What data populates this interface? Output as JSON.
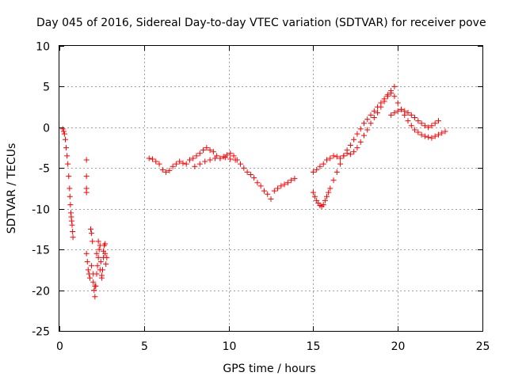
{
  "chart_data": {
    "type": "scatter",
    "title": "Day 045 of 2016, Sidereal Day-to-day VTEC variation (SDTVAR) for receiver pove",
    "xlabel": "GPS time / hours",
    "ylabel": "SDTVAR / TECUs",
    "xlim": [
      0,
      25
    ],
    "ylim": [
      -25,
      10
    ],
    "xticks": [
      "0",
      "5",
      "10",
      "15",
      "20",
      "25"
    ],
    "yticks": [
      "10",
      "5",
      "0",
      "-5",
      "-10",
      "-15",
      "-20",
      "-25"
    ],
    "grid": true,
    "marker": "plus",
    "color": "#ff0000",
    "series": [
      {
        "name": "early_drop",
        "x": [
          0.2,
          0.25,
          0.3,
          0.35,
          0.4,
          0.45,
          0.5,
          0.55,
          0.6,
          0.62,
          0.65,
          0.68,
          0.7,
          0.72,
          0.75,
          0.78,
          0.8
        ],
        "y": [
          -0.2,
          -0.5,
          -0.8,
          -1.5,
          -2.5,
          -3.5,
          -4.5,
          -6.0,
          -7.5,
          -8.5,
          -9.5,
          -10.5,
          -11.0,
          -11.5,
          -12.0,
          -12.8,
          -13.5
        ]
      },
      {
        "name": "isolated_points",
        "x": [
          1.6,
          1.6,
          1.6,
          1.6
        ],
        "y": [
          -4.0,
          -6.0,
          -7.5,
          -8.0
        ]
      },
      {
        "name": "early_cluster",
        "x": [
          1.6,
          1.65,
          1.7,
          1.75,
          1.8,
          1.85,
          1.9,
          1.95,
          2.0,
          2.05,
          2.1,
          2.15,
          2.2,
          2.25,
          2.3,
          2.35,
          2.4,
          2.45,
          2.5,
          2.55,
          2.6,
          2.65,
          2.7,
          2.75,
          2.8,
          1.9,
          2.0,
          2.1,
          2.2,
          2.3,
          2.4,
          2.5,
          2.6,
          2.7
        ],
        "y": [
          -15.5,
          -16.5,
          -17.5,
          -18.0,
          -18.5,
          -12.5,
          -13.0,
          -14.0,
          -19.0,
          -20.0,
          -20.8,
          -19.5,
          -18.0,
          -17.0,
          -16.0,
          -15.0,
          -14.5,
          -16.5,
          -18.5,
          -17.5,
          -16.0,
          -14.5,
          -15.5,
          -16.8,
          -16.0,
          -17.0,
          -18.0,
          -19.5,
          -15.5,
          -14.0,
          -17.5,
          -18.2,
          -15.2,
          -14.3
        ]
      },
      {
        "name": "day_trace",
        "x": [
          5.3,
          5.5,
          5.7,
          5.9,
          6.1,
          6.3,
          6.5,
          6.7,
          6.9,
          7.1,
          7.3,
          7.5,
          7.7,
          7.9,
          8.1,
          8.3,
          8.5,
          8.7,
          8.9,
          9.1,
          9.3,
          9.5,
          9.7,
          9.9,
          10.1,
          10.3,
          10.5,
          10.7,
          10.9,
          11.1,
          11.3,
          11.5,
          11.7,
          11.9,
          12.1,
          12.3,
          12.5,
          12.7,
          12.9,
          13.1,
          13.3,
          13.5,
          13.7,
          13.9,
          8.0,
          8.3,
          8.6,
          8.9,
          9.2,
          9.5,
          9.8,
          10.1,
          10.4
        ],
        "y": [
          -3.8,
          -3.9,
          -4.2,
          -4.5,
          -5.2,
          -5.5,
          -5.3,
          -4.8,
          -4.5,
          -4.2,
          -4.4,
          -4.5,
          -4.0,
          -3.8,
          -3.5,
          -3.2,
          -2.8,
          -2.5,
          -2.8,
          -3.0,
          -3.5,
          -3.8,
          -3.6,
          -3.4,
          -3.2,
          -3.5,
          -4.0,
          -4.5,
          -5.0,
          -5.5,
          -5.8,
          -6.2,
          -6.8,
          -7.2,
          -7.8,
          -8.2,
          -8.8,
          -7.8,
          -7.5,
          -7.2,
          -7.0,
          -6.8,
          -6.5,
          -6.3,
          -4.8,
          -4.5,
          -4.2,
          -4.0,
          -3.8,
          -3.8,
          -3.7,
          -3.9,
          -4.0
        ]
      },
      {
        "name": "afternoon_lower",
        "x": [
          15.0,
          15.1,
          15.2,
          15.3,
          15.4,
          15.5,
          15.6,
          15.7,
          15.8,
          15.9,
          16.0,
          16.2,
          16.4,
          16.6,
          16.8,
          17.0,
          17.2,
          17.4,
          17.6,
          17.8,
          18.0,
          18.2,
          18.4,
          18.6,
          18.8,
          19.0,
          19.2,
          19.4,
          19.6,
          19.8
        ],
        "y": [
          -8.0,
          -8.5,
          -9.0,
          -9.3,
          -9.6,
          -9.7,
          -9.5,
          -9.0,
          -8.5,
          -8.0,
          -7.5,
          -6.5,
          -5.5,
          -4.5,
          -3.5,
          -2.8,
          -2.2,
          -1.5,
          -0.8,
          -0.2,
          0.5,
          1.0,
          1.5,
          2.0,
          2.5,
          3.0,
          3.5,
          4.0,
          4.5,
          5.0
        ]
      },
      {
        "name": "afternoon_upper",
        "x": [
          15.0,
          15.2,
          15.4,
          15.6,
          15.8,
          16.0,
          16.2,
          16.4,
          16.6,
          16.8,
          17.0,
          17.2,
          17.4,
          17.6,
          17.8,
          18.0,
          18.2,
          18.4,
          18.6,
          18.8,
          19.0,
          19.2,
          19.4,
          19.6,
          19.8,
          20.0,
          20.2,
          20.4,
          20.6,
          20.8,
          21.0,
          21.2,
          21.4,
          21.6,
          21.8,
          22.0,
          22.2,
          22.4,
          22.6,
          22.8
        ],
        "y": [
          -5.5,
          -5.2,
          -4.8,
          -4.5,
          -4.0,
          -3.8,
          -3.5,
          -3.6,
          -3.8,
          -3.5,
          -3.2,
          -3.3,
          -3.0,
          -2.5,
          -1.8,
          -1.0,
          -0.3,
          0.5,
          1.2,
          1.8,
          2.5,
          3.2,
          3.8,
          4.2,
          3.8,
          3.0,
          2.2,
          1.5,
          0.8,
          0.2,
          -0.3,
          -0.6,
          -0.9,
          -1.1,
          -1.2,
          -1.3,
          -1.1,
          -0.9,
          -0.7,
          -0.5
        ]
      },
      {
        "name": "late_branch",
        "x": [
          19.6,
          19.8,
          20.0,
          20.2,
          20.4,
          20.6,
          20.8,
          21.0,
          21.2,
          21.4,
          21.6,
          21.8,
          22.0,
          22.2,
          22.4
        ],
        "y": [
          1.5,
          1.8,
          2.0,
          2.2,
          2.0,
          1.8,
          1.5,
          1.2,
          0.8,
          0.5,
          0.2,
          0.0,
          0.2,
          0.5,
          0.8
        ]
      }
    ]
  }
}
